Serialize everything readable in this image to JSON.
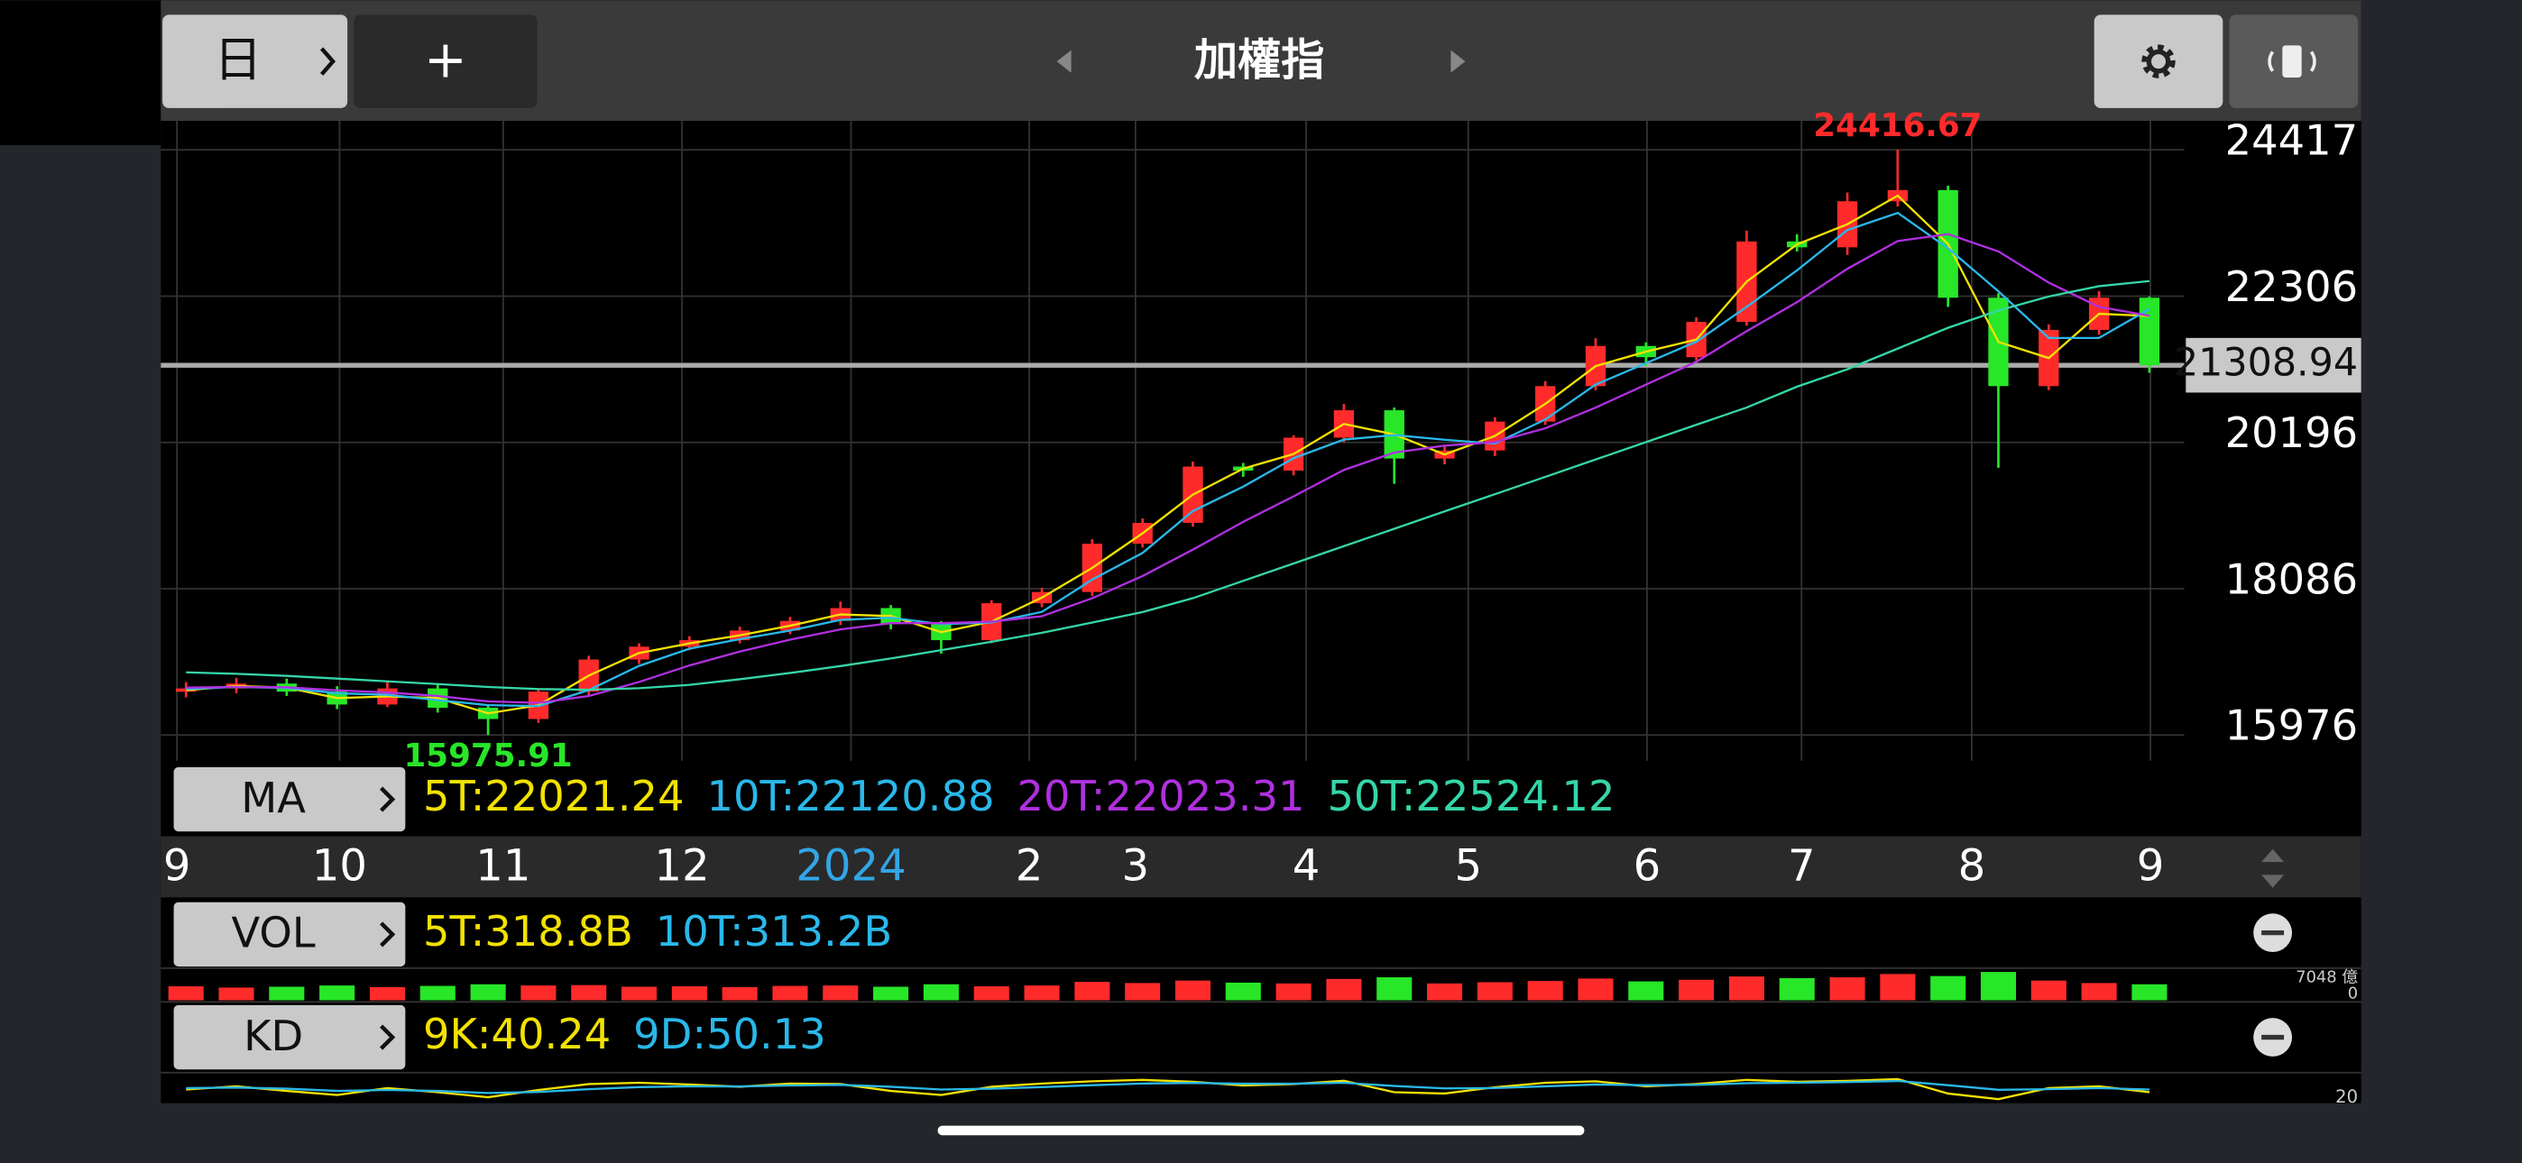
{
  "ui": {
    "period_button": "日",
    "add_button": "+",
    "title": "加權指"
  },
  "chart_data": {
    "type": "candlestick",
    "categories": [
      null,
      null,
      null,
      null,
      null,
      null,
      null,
      null,
      null,
      null,
      null,
      null,
      null,
      null,
      null,
      null,
      null,
      null,
      null,
      null,
      null,
      null,
      null,
      null,
      null,
      null,
      null,
      null,
      null,
      null,
      null,
      null,
      null,
      null,
      null,
      null,
      null,
      null,
      null,
      null
    ],
    "candles": {
      "open": [
        16600,
        16648,
        16718,
        16602,
        16416,
        16648,
        16370,
        16207,
        16602,
        17065,
        17250,
        17344,
        17483,
        17622,
        17807,
        17575,
        17344,
        17877,
        18039,
        18735,
        19036,
        19848,
        19790,
        20265,
        20660,
        19964,
        20080,
        20497,
        21008,
        21587,
        21425,
        21935,
        23094,
        23010,
        23674,
        23836,
        22283,
        21008,
        21819,
        22283
      ],
      "high": [
        16740,
        16800,
        16790,
        16680,
        16760,
        16700,
        16420,
        16650,
        17120,
        17300,
        17400,
        17540,
        17680,
        17900,
        17850,
        17620,
        17920,
        18100,
        18800,
        19100,
        19920,
        19900,
        20300,
        20750,
        20700,
        20150,
        20560,
        21080,
        21700,
        21640,
        22000,
        23250,
        23200,
        23800,
        24416.67,
        23900,
        22350,
        21900,
        22380,
        22300
      ],
      "low": [
        16520,
        16580,
        16540,
        16350,
        16380,
        16300,
        15975.91,
        16150,
        16550,
        17000,
        17200,
        17300,
        17430,
        17560,
        17500,
        17150,
        17300,
        17820,
        17980,
        18680,
        18980,
        19700,
        19720,
        20200,
        19600,
        19880,
        20000,
        20450,
        20950,
        21300,
        21380,
        21880,
        22950,
        22900,
        23600,
        22150,
        19830,
        20950,
        21750,
        21200
      ],
      "close": [
        16648,
        16718,
        16602,
        16416,
        16648,
        16370,
        16207,
        16602,
        17065,
        17250,
        17344,
        17483,
        17622,
        17807,
        17575,
        17344,
        17877,
        18039,
        18735,
        19036,
        19848,
        19790,
        20265,
        20660,
        19964,
        20080,
        20497,
        21008,
        21587,
        21425,
        21935,
        23094,
        23010,
        23674,
        23836,
        22283,
        21008,
        21819,
        22283,
        21309
      ]
    },
    "up_color": "#ff2b2b",
    "down_color": "#28e628",
    "ylim": [
      15605,
      24833
    ],
    "yticks": [
      15976,
      18086,
      20196,
      22306,
      24417
    ],
    "xlim": [
      -0.5,
      39.5
    ],
    "xticks": [
      {
        "value": -0.18,
        "label": "9"
      },
      {
        "value": 3.05,
        "label": "10"
      },
      {
        "value": 6.3,
        "label": "11"
      },
      {
        "value": 9.85,
        "label": "12"
      },
      {
        "value": 13.21,
        "label": "2024",
        "color": "#33a6e6"
      },
      {
        "value": 16.75,
        "label": "2"
      },
      {
        "value": 18.86,
        "label": "3"
      },
      {
        "value": 22.25,
        "label": "4"
      },
      {
        "value": 25.47,
        "label": "5"
      },
      {
        "value": 29.02,
        "label": "6"
      },
      {
        "value": 32.09,
        "label": "7"
      },
      {
        "value": 35.47,
        "label": "8"
      },
      {
        "value": 39.02,
        "label": "9"
      }
    ],
    "grid": true,
    "current_price": 21308.94,
    "ma_label": "MA",
    "series": [
      {
        "name": "5T:22021.24",
        "color": "#f2e200",
        "values": [
          16624,
          16683,
          16660,
          16509,
          16532,
          16509,
          16289,
          16405,
          16834,
          17158,
          17297,
          17414,
          17553,
          17715,
          17691,
          17460,
          17611,
          17958,
          18387,
          18886,
          19442,
          19819,
          20028,
          20463,
          20312,
          20022,
          20289,
          20753,
          21298,
          21506,
          21680,
          22515,
          23052,
          23342,
          23755,
          23060,
          21646,
          21414,
          22051,
          22021.24
        ]
      },
      {
        "name": "10T:22120.88",
        "color": "#2ab8ea",
        "values": [
          16640,
          16670,
          16656,
          16579,
          16555,
          16478,
          16408,
          16393,
          16625,
          16972,
          17220,
          17359,
          17483,
          17637,
          17668,
          17575,
          17599,
          17753,
          18217,
          18603,
          19206,
          19558,
          19968,
          20238,
          20303,
          20235,
          20180,
          20528,
          21031,
          21340,
          21649,
          22151,
          22680,
          23259,
          23507,
          22997,
          22376,
          21703,
          21703,
          22120.88
        ]
      },
      {
        "name": "20T:22023.31",
        "color": "#b030e0",
        "values": [
          16660,
          16670,
          16665,
          16620,
          16590,
          16540,
          16460,
          16440,
          16540,
          16740,
          16980,
          17180,
          17350,
          17500,
          17590,
          17590,
          17610,
          17690,
          17950,
          18270,
          18650,
          19050,
          19420,
          19800,
          20050,
          20150,
          20200,
          20400,
          20700,
          21030,
          21360,
          21800,
          22220,
          22700,
          23100,
          23200,
          22950,
          22500,
          22150,
          22023.31
        ]
      },
      {
        "name": "50T:22524.12",
        "color": "#35d6a8",
        "values": [
          16880,
          16860,
          16830,
          16790,
          16750,
          16710,
          16670,
          16640,
          16630,
          16650,
          16700,
          16780,
          16870,
          16970,
          17080,
          17200,
          17320,
          17450,
          17600,
          17750,
          17950,
          18200,
          18450,
          18700,
          18950,
          19200,
          19450,
          19700,
          19950,
          20200,
          20450,
          20700,
          21000,
          21250,
          21550,
          21850,
          22100,
          22300,
          22450,
          22524.12
        ]
      }
    ],
    "volume": {
      "label": "VOL",
      "legend": [
        {
          "name": "5T:318.8B",
          "color": "#f2e200"
        },
        {
          "name": "10T:313.2B",
          "color": "#2ab8ea"
        }
      ],
      "values": [
        3400,
        3100,
        3300,
        3600,
        3200,
        3500,
        3900,
        3600,
        3700,
        3300,
        3400,
        3200,
        3500,
        3600,
        3300,
        3900,
        3400,
        3600,
        4500,
        4200,
        4800,
        4300,
        4100,
        5200,
        5600,
        4100,
        4400,
        4700,
        5300,
        4600,
        5000,
        5800,
        5400,
        5600,
        6400,
        5900,
        6900,
        4800,
        4200,
        3900
      ],
      "ylim": [
        0,
        7048
      ],
      "yticks": [
        0,
        {
          "value": 7048,
          "label": "7048 億"
        }
      ]
    },
    "kd": {
      "label": "KD",
      "series": [
        {
          "name": "9K:40.24",
          "color": "#f2e200",
          "values": [
            50,
            62,
            45,
            30,
            55,
            40,
            22,
            48,
            70,
            75,
            68,
            60,
            72,
            70,
            45,
            30,
            60,
            72,
            80,
            85,
            78,
            65,
            70,
            82,
            40,
            35,
            58,
            75,
            80,
            62,
            70,
            85,
            78,
            82,
            88,
            35,
            15,
            55,
            62,
            40.24
          ]
        },
        {
          "name": "9D:50.13",
          "color": "#2ab8ea",
          "values": [
            55,
            57,
            53,
            45,
            48,
            45,
            37,
            41,
            51,
            59,
            62,
            61,
            65,
            67,
            60,
            50,
            53,
            59,
            66,
            72,
            74,
            71,
            71,
            75,
            63,
            54,
            55,
            62,
            68,
            66,
            67,
            73,
            75,
            77,
            81,
            66,
            49,
            51,
            55,
            50.13
          ]
        }
      ],
      "ylim": [
        0,
        100
      ],
      "yticks": [
        20
      ]
    }
  }
}
